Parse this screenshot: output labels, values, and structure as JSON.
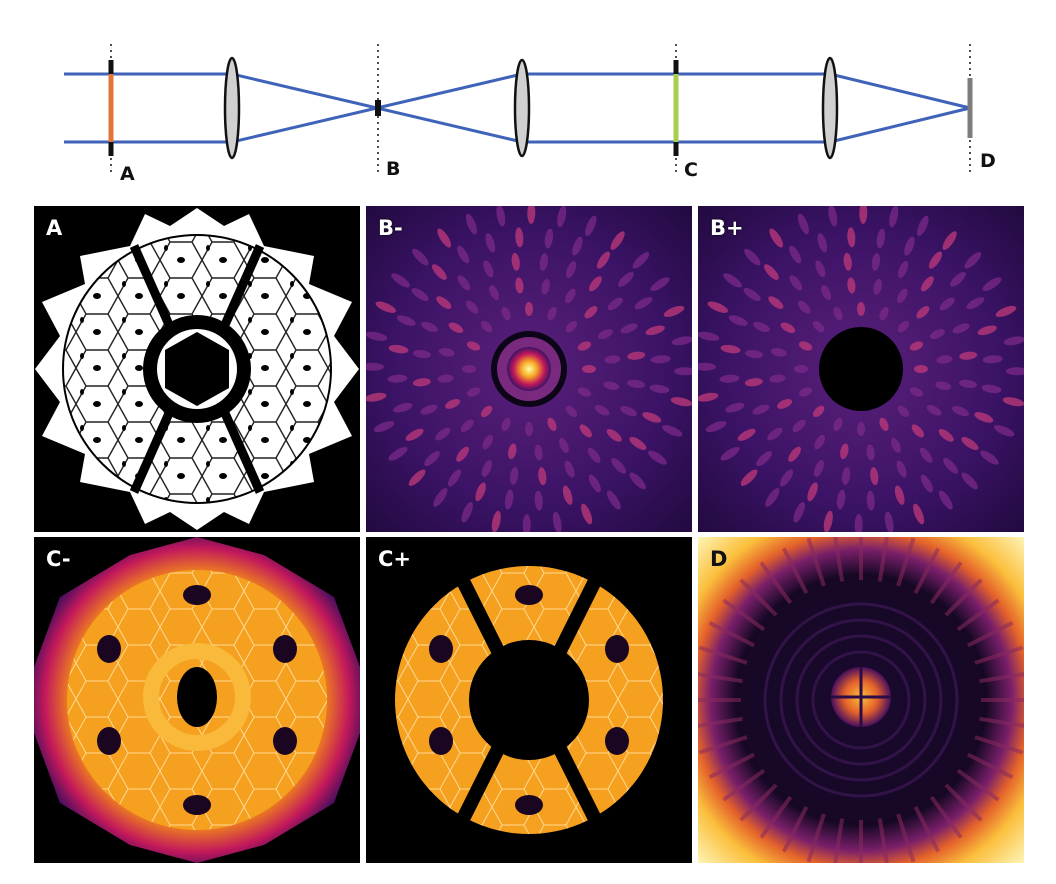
{
  "schematic": {
    "planes": [
      {
        "id": "A",
        "label": "A",
        "element": "pupil-mask",
        "color": "#e0743a"
      },
      {
        "id": "B",
        "label": "B",
        "element": "focal-plane-mask",
        "color": "#111111"
      },
      {
        "id": "C",
        "label": "C",
        "element": "lyot-stop",
        "color": "#a6cf4e"
      },
      {
        "id": "D",
        "label": "D",
        "element": "detector",
        "color": "#7d7d7d"
      }
    ],
    "beam_color": "#3e63b8",
    "lens_fill": "#d0d0d0"
  },
  "panels": [
    {
      "id": "A",
      "label": "A",
      "kind": "binary-mask"
    },
    {
      "id": "Bm",
      "label": "B-",
      "kind": "focal-intensity"
    },
    {
      "id": "Bp",
      "label": "B+",
      "kind": "focal-intensity-occulted"
    },
    {
      "id": "Cm",
      "label": "C-",
      "kind": "lyot-intensity"
    },
    {
      "id": "Cp",
      "label": "C+",
      "kind": "lyot-intensity-stopped"
    },
    {
      "id": "D",
      "label": "D",
      "kind": "detector-intensity"
    }
  ],
  "colormap": {
    "low": "#000004",
    "mid": "#b5367a",
    "high": "#fcffa4",
    "accent": "#f98c0a"
  }
}
